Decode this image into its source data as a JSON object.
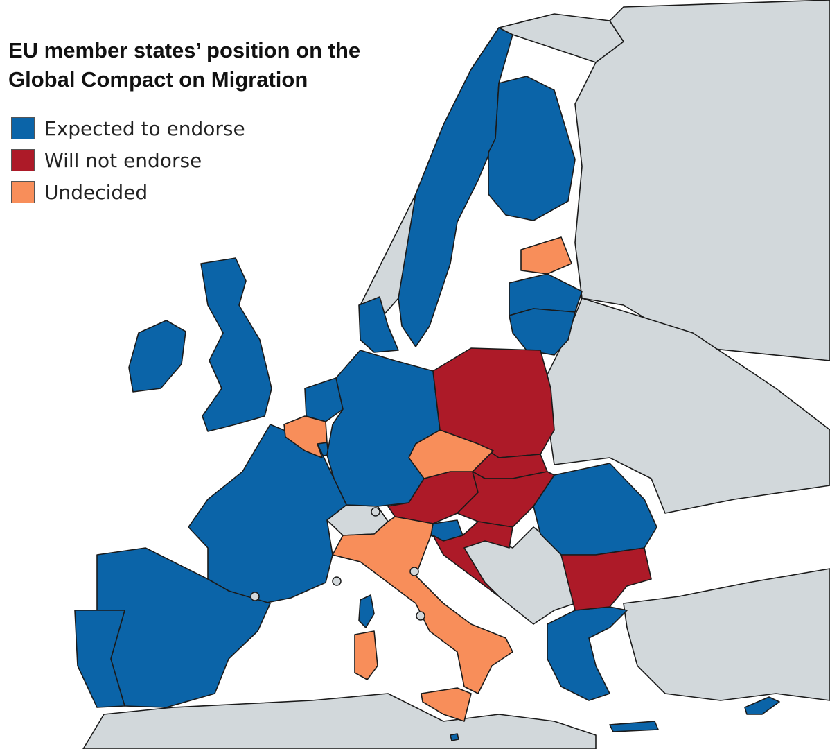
{
  "title": {
    "line1": "EU member states’ position on the",
    "line2": "Global Compact on Migration"
  },
  "legend": [
    {
      "label": "Expected to endorse",
      "color": "#0b64a8",
      "category": "endorse"
    },
    {
      "label": "Will not endorse",
      "color": "#ad1a28",
      "category": "not_endorse"
    },
    {
      "label": "Undecided",
      "color": "#f88e5a",
      "category": "undecided"
    }
  ],
  "colors": {
    "non_eu_land": "#d2d8db",
    "sea": "#ffffff",
    "border": "#1a1a1a"
  },
  "countries": {
    "endorse": [
      "Ireland",
      "United Kingdom",
      "Netherlands",
      "Luxembourg",
      "Germany",
      "Denmark",
      "Sweden",
      "Finland",
      "Latvia",
      "Lithuania",
      "France",
      "Spain",
      "Portugal",
      "Slovenia",
      "Romania",
      "Greece",
      "Cyprus",
      "Malta"
    ],
    "not_endorse": [
      "Poland",
      "Slovakia",
      "Austria",
      "Hungary",
      "Croatia",
      "Bulgaria"
    ],
    "undecided": [
      "Estonia",
      "Belgium",
      "Czech Republic",
      "Italy"
    ]
  }
}
